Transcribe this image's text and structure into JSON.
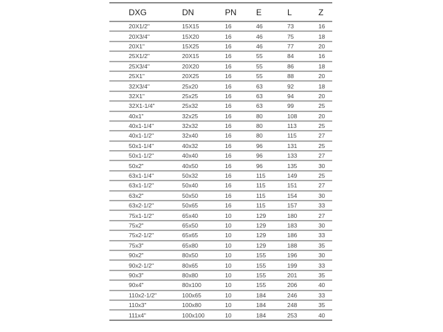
{
  "table": {
    "headers": [
      "DXG",
      "DN",
      "PN",
      "E",
      "L",
      "Z"
    ],
    "rows": [
      [
        "20X1/2\"",
        "15X15",
        "16",
        "46",
        "73",
        "16"
      ],
      [
        "20X3/4\"",
        "15X20",
        "16",
        "46",
        "75",
        "18"
      ],
      [
        "20X1\"",
        "15X25",
        "16",
        "46",
        "77",
        "20"
      ],
      [
        "25X1/2\"",
        "20X15",
        "16",
        "55",
        "84",
        "16"
      ],
      [
        "25X3/4\"",
        "20X20",
        "16",
        "55",
        "86",
        "18"
      ],
      [
        "25X1\"",
        "20X25",
        "16",
        "55",
        "88",
        "20"
      ],
      [
        "32X3/4\"",
        "25x20",
        "16",
        "63",
        "92",
        "18"
      ],
      [
        "32X1\"",
        "25x25",
        "16",
        "63",
        "94",
        "20"
      ],
      [
        "32X1-1/4\"",
        "25x32",
        "16",
        "63",
        "99",
        "25"
      ],
      [
        "40x1\"",
        "32x25",
        "16",
        "80",
        "108",
        "20"
      ],
      [
        "40x1-1/4\"",
        "32x32",
        "16",
        "80",
        "113",
        "25"
      ],
      [
        "40x1-1/2\"",
        "32x40",
        "16",
        "80",
        "115",
        "27"
      ],
      [
        "50x1-1/4\"",
        "40x32",
        "16",
        "96",
        "131",
        "25"
      ],
      [
        "50x1-1/2\"",
        "40x40",
        "16",
        "96",
        "133",
        "27"
      ],
      [
        "50x2\"",
        "40x50",
        "16",
        "96",
        "135",
        "30"
      ],
      [
        "63x1-1/4\"",
        "50x32",
        "16",
        "115",
        "149",
        "25"
      ],
      [
        "63x1-1/2\"",
        "50x40",
        "16",
        "115",
        "151",
        "27"
      ],
      [
        "63x2\"",
        "50x50",
        "16",
        "115",
        "154",
        "30"
      ],
      [
        "63x2-1/2\"",
        "50x65",
        "16",
        "115",
        "157",
        "33"
      ],
      [
        "75x1-1/2\"",
        "65x40",
        "10",
        "129",
        "180",
        "27"
      ],
      [
        "75x2\"",
        "65x50",
        "10",
        "129",
        "183",
        "30"
      ],
      [
        "75x2-1/2\"",
        "65x65",
        "10",
        "129",
        "186",
        "33"
      ],
      [
        "75x3\"",
        "65x80",
        "10",
        "129",
        "188",
        "35"
      ],
      [
        "90x2\"",
        "80x50",
        "10",
        "155",
        "196",
        "30"
      ],
      [
        "90x2-1/2\"",
        "80x65",
        "10",
        "155",
        "199",
        "33"
      ],
      [
        "90x3\"",
        "80x80",
        "10",
        "155",
        "201",
        "35"
      ],
      [
        "90x4\"",
        "80x100",
        "10",
        "155",
        "206",
        "40"
      ],
      [
        "110x2-1/2\"",
        "100x65",
        "10",
        "184",
        "246",
        "33"
      ],
      [
        "110x3\"",
        "100x80",
        "10",
        "184",
        "248",
        "35"
      ],
      [
        "111x4\"",
        "100x100",
        "10",
        "184",
        "253",
        "40"
      ]
    ]
  }
}
